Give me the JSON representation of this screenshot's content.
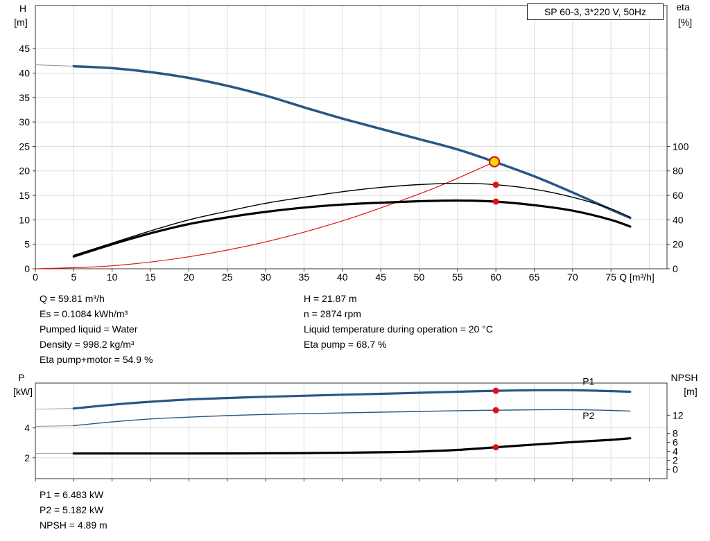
{
  "info": {
    "left": [
      "Q = 59.81 m³/h",
      "Es = 0.1084 kWh/m³",
      "Pumped liquid = Water",
      "Density = 998.2 kg/m³",
      "Eta pump+motor = 54.9 %"
    ],
    "right": [
      "H = 21.87 m",
      "n = 2874 rpm",
      "Liquid temperature during operation = 20 °C",
      "Eta pump = 68.7 %"
    ],
    "bottom": [
      "P1 = 6.483 kW",
      "P2 = 5.182 kW",
      "NPSH = 4.89 m"
    ]
  },
  "colors": {
    "curve_blue": "#2a5783",
    "curve_red": "#e01010",
    "duty_yellow": "#ffd900",
    "grid": "#dcdcdc"
  },
  "chart_data": [
    {
      "type": "line",
      "title": "SP 60-3, 3*220 V, 50Hz",
      "xlabel": "Q [m³/h]",
      "xlim": [
        0,
        82.3
      ],
      "x_ticks": [
        0,
        5,
        10,
        15,
        20,
        25,
        30,
        35,
        40,
        45,
        50,
        55,
        60,
        65,
        70,
        75
      ],
      "x_grid_extra": [
        80
      ],
      "left_axis": {
        "label": "H",
        "unit": "[m]",
        "ticks": [
          0,
          5,
          10,
          15,
          20,
          25,
          30,
          35,
          40,
          45
        ],
        "range": [
          0,
          53.8
        ]
      },
      "right_axis": {
        "label": "eta",
        "unit": "[%]",
        "ticks": [
          0,
          20,
          40,
          60,
          80,
          100
        ],
        "range": [
          0,
          215.2
        ]
      },
      "series": [
        {
          "name": "head-curve-leader",
          "axis": "left",
          "color": "#8c8c8c",
          "width": 0.9,
          "x": [
            0,
            5
          ],
          "y": [
            41.7,
            41.4
          ]
        },
        {
          "name": "head-curve",
          "axis": "left",
          "color": "#2a5783",
          "width": 3.5,
          "x": [
            5,
            10,
            15,
            20,
            25,
            30,
            35,
            40,
            45,
            50,
            55,
            59.81,
            65,
            70,
            75,
            77.5
          ],
          "y": [
            41.4,
            41.0,
            40.2,
            39.0,
            37.4,
            35.4,
            33.0,
            30.7,
            28.6,
            26.5,
            24.4,
            21.87,
            18.9,
            15.6,
            12.1,
            10.4
          ]
        },
        {
          "name": "system-curve",
          "axis": "left",
          "color": "#e01010",
          "width": 1.2,
          "x": [
            0,
            10,
            20,
            30,
            40,
            50,
            55,
            59.81
          ],
          "y": [
            0,
            0.61,
            2.45,
            5.5,
            9.78,
            15.28,
            18.49,
            21.87
          ]
        },
        {
          "name": "eta-pump-curve",
          "axis": "right",
          "color": "#000000",
          "width": 1.4,
          "x": [
            5,
            10,
            15,
            20,
            25,
            30,
            35,
            40,
            45,
            50,
            55,
            60,
            65,
            70,
            75,
            77.5
          ],
          "y": [
            11,
            21,
            31,
            40,
            47,
            53.5,
            58.5,
            63,
            66.5,
            68.8,
            69.9,
            68.7,
            65,
            58.5,
            49,
            42
          ]
        },
        {
          "name": "eta-pump-motor-curve",
          "axis": "right",
          "color": "#000000",
          "width": 3.2,
          "x": [
            5,
            10,
            15,
            20,
            25,
            30,
            35,
            40,
            45,
            50,
            55,
            60,
            65,
            70,
            75,
            77.5
          ],
          "y": [
            10,
            20,
            29,
            36.5,
            42,
            46.5,
            50,
            52.5,
            54,
            55.2,
            55.8,
            54.9,
            52,
            47.5,
            40,
            34.5
          ]
        }
      ],
      "markers": [
        {
          "name": "duty-point",
          "axis": "left",
          "x": 59.81,
          "y": 21.87,
          "r": 7,
          "fill": "#ffd900",
          "stroke": "#e01010",
          "stroke_width": 2.2
        },
        {
          "name": "eta-pump-point",
          "axis": "right",
          "x": 60,
          "y": 68.7,
          "r": 4.5,
          "fill": "#e01010"
        },
        {
          "name": "eta-pump-motor-point",
          "axis": "right",
          "x": 60,
          "y": 54.9,
          "r": 4.5,
          "fill": "#e01010"
        }
      ]
    },
    {
      "type": "line",
      "title": "",
      "xlabel": "",
      "xlim": [
        0,
        82.3
      ],
      "x_ticks": [
        0,
        5,
        10,
        15,
        20,
        25,
        30,
        35,
        40,
        45,
        50,
        55,
        60,
        65,
        70,
        75,
        80
      ],
      "left_axis": {
        "label": "P",
        "unit": "[kW]",
        "ticks": [
          2,
          4
        ],
        "range": [
          0.6,
          7.0
        ]
      },
      "right_axis": {
        "label": "NPSH",
        "unit": "[m]",
        "ticks": [
          0,
          2,
          4,
          6,
          8,
          12
        ],
        "range": [
          -2.1,
          19.2
        ]
      },
      "series": [
        {
          "name": "p1-leader",
          "axis": "left",
          "color": "#8c8c8c",
          "width": 0.9,
          "x": [
            0,
            5
          ],
          "y": [
            5.25,
            5.3
          ]
        },
        {
          "name": "p1-curve",
          "axis": "left",
          "color": "#2a5783",
          "width": 3.2,
          "x": [
            5,
            10,
            15,
            20,
            25,
            30,
            35,
            40,
            45,
            50,
            55,
            60,
            65,
            70,
            75,
            77.5
          ],
          "y": [
            5.3,
            5.55,
            5.75,
            5.9,
            6.0,
            6.08,
            6.15,
            6.22,
            6.28,
            6.35,
            6.42,
            6.483,
            6.52,
            6.52,
            6.46,
            6.42
          ]
        },
        {
          "name": "p2-leader",
          "axis": "left",
          "color": "#8c8c8c",
          "width": 0.9,
          "x": [
            0,
            5
          ],
          "y": [
            4.1,
            4.15
          ]
        },
        {
          "name": "p2-curve",
          "axis": "left",
          "color": "#2a5783",
          "width": 1.4,
          "x": [
            5,
            10,
            15,
            20,
            25,
            30,
            35,
            40,
            45,
            50,
            55,
            60,
            65,
            70,
            75,
            77.5
          ],
          "y": [
            4.15,
            4.4,
            4.6,
            4.72,
            4.82,
            4.9,
            4.95,
            5.0,
            5.05,
            5.1,
            5.15,
            5.182,
            5.21,
            5.22,
            5.17,
            5.12
          ]
        },
        {
          "name": "npsh-leader",
          "axis": "right",
          "color": "#8c8c8c",
          "width": 0.9,
          "x": [
            0,
            5
          ],
          "y": [
            3.5,
            3.5
          ]
        },
        {
          "name": "npsh-curve",
          "axis": "right",
          "color": "#000000",
          "width": 3.2,
          "x": [
            5,
            10,
            15,
            20,
            25,
            30,
            35,
            40,
            45,
            50,
            55,
            60,
            65,
            70,
            75,
            77.5
          ],
          "y": [
            3.5,
            3.5,
            3.5,
            3.5,
            3.52,
            3.55,
            3.6,
            3.68,
            3.78,
            3.95,
            4.3,
            4.89,
            5.5,
            6.05,
            6.55,
            6.9
          ]
        }
      ],
      "markers": [
        {
          "name": "p1-point",
          "axis": "left",
          "x": 60,
          "y": 6.483,
          "r": 4.5,
          "fill": "#e01010"
        },
        {
          "name": "p2-point",
          "axis": "left",
          "x": 60,
          "y": 5.182,
          "r": 4.5,
          "fill": "#e01010"
        },
        {
          "name": "npsh-point",
          "axis": "right",
          "x": 60,
          "y": 4.89,
          "r": 4.5,
          "fill": "#e01010"
        }
      ],
      "labels": [
        {
          "text": "P1",
          "axis": "left",
          "x": 71.3,
          "y": 6.88,
          "color": "#2a5783"
        },
        {
          "text": "P2",
          "axis": "left",
          "x": 71.3,
          "y": 4.6,
          "color": "#2a5783"
        }
      ]
    }
  ]
}
